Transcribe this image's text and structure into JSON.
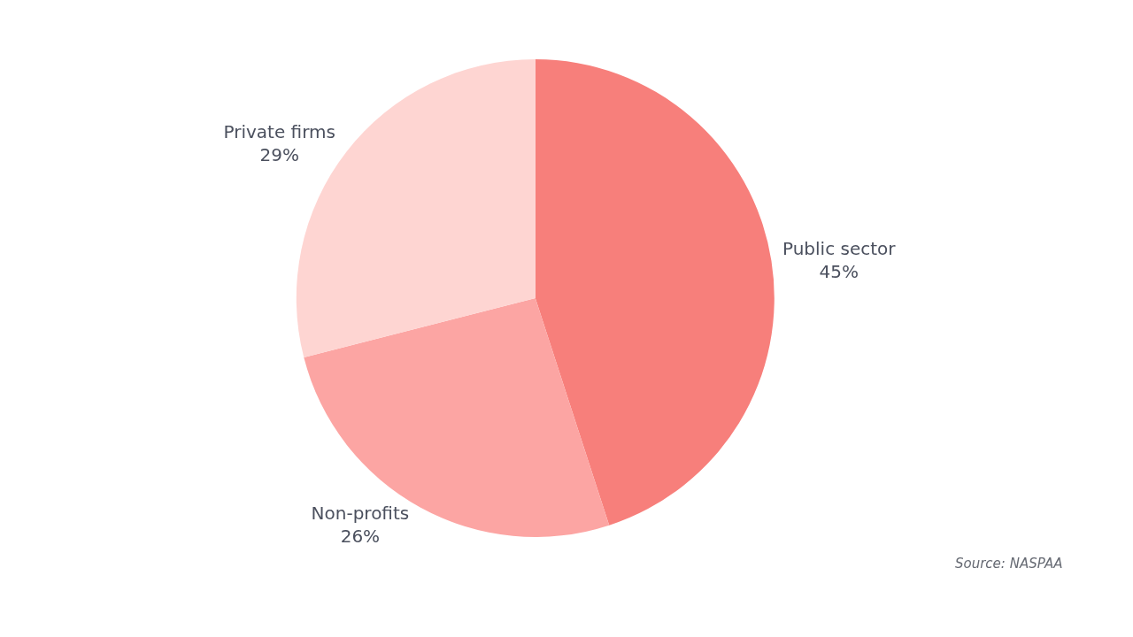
{
  "chart_data": {
    "type": "pie",
    "categories": [
      "Public sector",
      "Non-profits",
      "Private firms"
    ],
    "values": [
      45,
      26,
      29
    ],
    "value_labels": [
      "45%",
      "26%",
      "29%"
    ],
    "colors": [
      "#f77f7b",
      "#fca5a3",
      "#fed5d2"
    ],
    "legend": false,
    "annotations": [
      "Source: NASPAA"
    ]
  }
}
